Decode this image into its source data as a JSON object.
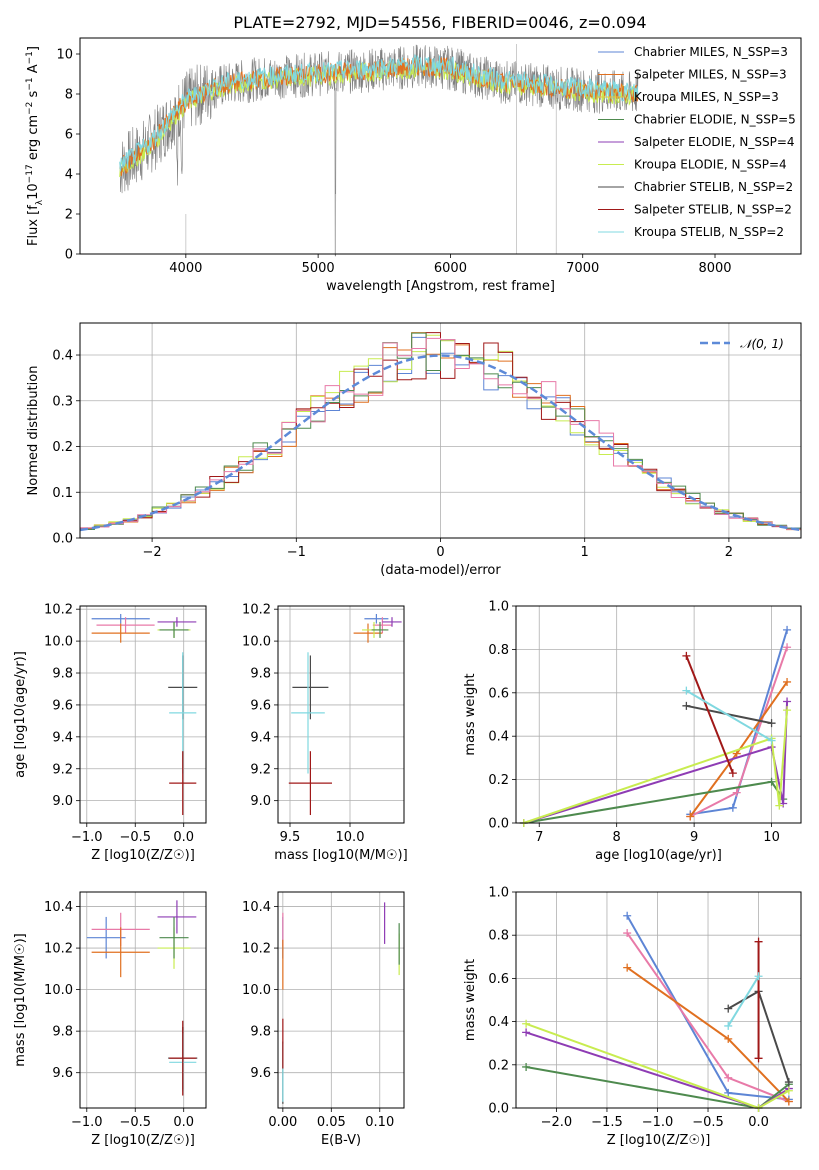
{
  "title": "PLATE=2792, MJD=54556, FIBERID=0046, z=0.094",
  "colors": {
    "Chabrier MILES": "#5d85d5",
    "Salpeter MILES": "#e07020",
    "Kroupa MILES": "#e6c440",
    "Chabrier ELODIE": "#4e8a4e",
    "Salpeter ELODIE": "#8e3cb4",
    "Kroupa ELODIE": "#c8ec50",
    "Chabrier STELIB": "#4a4a4a",
    "Salpeter STELIB": "#a01818",
    "Kroupa STELIB": "#80d8e0",
    "pink": "#e87aa8",
    "data": "#7f7f7f",
    "normal": "#5d8ad8"
  },
  "panels": {
    "spectrum": {
      "xlabel": "wavelength [Angstrom, rest frame]",
      "ylabel": "Flux [f_λ 10^-17 erg cm^-2 s^-1 A^-1]",
      "xticks": [
        "4000",
        "5000",
        "6000",
        "7000",
        "8000"
      ],
      "yticks": [
        "0",
        "2",
        "4",
        "6",
        "8",
        "10"
      ]
    },
    "hist": {
      "xlabel": "(data-model)/error",
      "ylabel": "Normed distribution",
      "xticks": [
        "−2",
        "−1",
        "0",
        "1",
        "2"
      ],
      "yticks": [
        "0.0",
        "0.1",
        "0.2",
        "0.3",
        "0.4"
      ],
      "legend": "𝒩(0, 1)"
    },
    "age_Z": {
      "xlabel": "Z [log10(Z/Z☉)]",
      "ylabel": "age [log10(age/yr)]",
      "xticks": [
        "−1.0",
        "−0.5",
        "0.0"
      ],
      "yticks": [
        "9.0",
        "9.2",
        "9.4",
        "9.6",
        "9.8",
        "10.0",
        "10.2"
      ]
    },
    "age_mass": {
      "xlabel": "mass [log10(M/M☉)]",
      "xticks": [
        "9.5",
        "10.0"
      ],
      "yticks": [
        "9.0",
        "9.2",
        "9.4",
        "9.6",
        "9.8",
        "10.0",
        "10.2"
      ]
    },
    "mw_age": {
      "xlabel": "age [log10(age/yr)]",
      "ylabel": "mass weight",
      "xticks": [
        "7",
        "8",
        "9",
        "10"
      ],
      "yticks": [
        "0.0",
        "0.2",
        "0.4",
        "0.6",
        "0.8",
        "1.0"
      ]
    },
    "mass_Z": {
      "xlabel": "Z [log10(Z/Z☉)]",
      "ylabel": "mass [log10(M/M☉)]",
      "xticks": [
        "−1.0",
        "−0.5",
        "0.0"
      ],
      "yticks": [
        "9.6",
        "9.8",
        "10.0",
        "10.2",
        "10.4"
      ]
    },
    "mass_ebv": {
      "xlabel": "E(B-V)",
      "xticks": [
        "0.00",
        "0.05",
        "0.10"
      ],
      "yticks": [
        "9.6",
        "9.8",
        "10.0",
        "10.2",
        "10.4"
      ]
    },
    "mw_Z": {
      "xlabel": "Z [log10(Z/Z☉)]",
      "ylabel": "mass weight",
      "xticks": [
        "−2.0",
        "−1.5",
        "−1.0",
        "−0.5",
        "0.0"
      ],
      "yticks": [
        "0.0",
        "0.2",
        "0.4",
        "0.6",
        "0.8",
        "1.0"
      ]
    }
  },
  "chart_data": [
    {
      "type": "line",
      "title": "PLATE=2792, MJD=54556, FIBERID=0046, z=0.094",
      "xlabel": "wavelength [Angstrom, rest frame]",
      "ylabel": "Flux [f_λ 10^-17 erg cm^-2 s^-1 A^-1]",
      "xlim": [
        3200,
        8650
      ],
      "ylim": [
        0,
        10.8
      ],
      "legend_position": "right",
      "series": [
        {
          "name": "Chabrier MILES, N_SSP=3"
        },
        {
          "name": "Salpeter MILES, N_SSP=3"
        },
        {
          "name": "Kroupa MILES, N_SSP=3"
        },
        {
          "name": "Chabrier ELODIE, N_SSP=5"
        },
        {
          "name": "Salpeter ELODIE, N_SSP=4"
        },
        {
          "name": "Kroupa ELODIE, N_SSP=4"
        },
        {
          "name": "Chabrier STELIB, N_SSP=2"
        },
        {
          "name": "Salpeter STELIB, N_SSP=2"
        },
        {
          "name": "Kroupa STELIB, N_SSP=2"
        }
      ],
      "continuum": {
        "x": [
          3500,
          3700,
          3800,
          3900,
          4000,
          4200,
          4400,
          4600,
          4800,
          5000,
          5200,
          5400,
          5600,
          5800,
          6000,
          6200,
          6400,
          6600,
          6800,
          7000,
          7200,
          7400
        ],
        "y": [
          4.3,
          5.3,
          6.0,
          6.9,
          7.6,
          8.3,
          8.6,
          8.8,
          8.9,
          9.0,
          9.1,
          9.2,
          9.3,
          9.4,
          9.3,
          8.9,
          8.6,
          8.5,
          8.3,
          8.2,
          8.1,
          8.0
        ]
      }
    },
    {
      "type": "bar",
      "xlabel": "(data-model)/error",
      "ylabel": "Normed distribution",
      "xlim": [
        -2.5,
        2.5
      ],
      "ylim": [
        0,
        0.47
      ],
      "grid": true,
      "legend_position": "top-right",
      "bin_width": 0.1,
      "reference_curve": {
        "name": "𝒩(0, 1)",
        "mean": 0,
        "sigma": 1
      }
    },
    {
      "type": "scatter",
      "xlabel": "Z [log10(Z/Z☉)]",
      "ylabel": "age [log10(age/yr)]",
      "xlim": [
        -1.07,
        0.23
      ],
      "ylim": [
        8.86,
        10.22
      ],
      "grid": true,
      "points": [
        {
          "model": "Chabrier MILES",
          "x": -0.65,
          "y": 10.14,
          "xerr": 0.3,
          "yerr": 0.03
        },
        {
          "model": "pink",
          "x": -0.6,
          "y": 10.1,
          "xerr": 0.3,
          "yerr": 0.05
        },
        {
          "model": "Salpeter MILES",
          "x": -0.65,
          "y": 10.05,
          "xerr": 0.3,
          "yerr": 0.06
        },
        {
          "model": "Salpeter ELODIE",
          "x": -0.07,
          "y": 10.12,
          "xerr": 0.2,
          "yerr": 0.03
        },
        {
          "model": "Kroupa ELODIE",
          "x": -0.1,
          "y": 10.07,
          "xerr": 0.17,
          "yerr": 0.05
        },
        {
          "model": "Chabrier ELODIE",
          "x": -0.1,
          "y": 10.07,
          "xerr": 0.15,
          "yerr": 0.05
        },
        {
          "model": "Chabrier STELIB",
          "x": -0.01,
          "y": 9.71,
          "xerr": 0.15,
          "yerr": 0.2
        },
        {
          "model": "Kroupa STELIB",
          "x": -0.01,
          "y": 9.55,
          "xerr": 0.14,
          "yerr": 0.38
        },
        {
          "model": "Salpeter STELIB",
          "x": -0.01,
          "y": 9.11,
          "xerr": 0.14,
          "yerr": 0.2
        }
      ]
    },
    {
      "type": "scatter",
      "xlabel": "mass [log10(M/M☉)]",
      "ylabel": "",
      "xlim": [
        9.4,
        10.45
      ],
      "ylim": [
        8.86,
        10.22
      ],
      "grid": true,
      "points": [
        {
          "model": "Chabrier MILES",
          "x": 10.22,
          "y": 10.14,
          "xerr": 0.1,
          "yerr": 0.03
        },
        {
          "model": "pink",
          "x": 10.27,
          "y": 10.1,
          "xerr": 0.08,
          "yerr": 0.05
        },
        {
          "model": "Salpeter MILES",
          "x": 10.15,
          "y": 10.05,
          "xerr": 0.12,
          "yerr": 0.06
        },
        {
          "model": "Salpeter ELODIE",
          "x": 10.35,
          "y": 10.12,
          "xerr": 0.08,
          "yerr": 0.03
        },
        {
          "model": "Kroupa ELODIE",
          "x": 10.2,
          "y": 10.07,
          "xerr": 0.1,
          "yerr": 0.05
        },
        {
          "model": "Chabrier ELODIE",
          "x": 10.25,
          "y": 10.07,
          "xerr": 0.07,
          "yerr": 0.05
        },
        {
          "model": "Chabrier STELIB",
          "x": 9.67,
          "y": 9.71,
          "xerr": 0.15,
          "yerr": 0.2
        },
        {
          "model": "Kroupa STELIB",
          "x": 9.65,
          "y": 9.55,
          "xerr": 0.14,
          "yerr": 0.38
        },
        {
          "model": "Salpeter STELIB",
          "x": 9.67,
          "y": 9.11,
          "xerr": 0.18,
          "yerr": 0.2
        }
      ]
    },
    {
      "type": "line",
      "xlabel": "age [log10(age/yr)]",
      "ylabel": "mass weight",
      "xlim": [
        6.7,
        10.38
      ],
      "ylim": [
        0,
        1.0
      ],
      "grid": true,
      "series": [
        {
          "model": "Chabrier MILES",
          "x": [
            8.95,
            9.5,
            10.2
          ],
          "y": [
            0.04,
            0.07,
            0.89
          ]
        },
        {
          "model": "pink",
          "x": [
            8.95,
            9.55,
            10.2
          ],
          "y": [
            0.03,
            0.14,
            0.81
          ]
        },
        {
          "model": "Salpeter MILES",
          "x": [
            8.95,
            9.55,
            10.2
          ],
          "y": [
            0.03,
            0.32,
            0.65
          ]
        },
        {
          "model": "Chabrier ELODIE",
          "x": [
            6.8,
            10.0,
            10.15
          ],
          "y": [
            0.0,
            0.19,
            0.11
          ]
        },
        {
          "model": "Salpeter ELODIE",
          "x": [
            6.8,
            10.0,
            10.15,
            10.2
          ],
          "y": [
            0.0,
            0.35,
            0.09,
            0.56
          ]
        },
        {
          "model": "Kroupa ELODIE",
          "x": [
            6.8,
            10.0,
            10.1,
            10.2
          ],
          "y": [
            0.0,
            0.39,
            0.08,
            0.52
          ]
        },
        {
          "model": "Chabrier STELIB",
          "x": [
            8.9,
            10.0
          ],
          "y": [
            0.54,
            0.46
          ]
        },
        {
          "model": "Salpeter STELIB",
          "x": [
            8.9,
            9.5
          ],
          "y": [
            0.77,
            0.23
          ]
        },
        {
          "model": "Kroupa STELIB",
          "x": [
            8.9,
            10.0
          ],
          "y": [
            0.61,
            0.38
          ]
        }
      ]
    },
    {
      "type": "scatter",
      "xlabel": "Z [log10(Z/Z☉)]",
      "ylabel": "mass [log10(M/M☉)]",
      "xlim": [
        -1.07,
        0.23
      ],
      "ylim": [
        9.43,
        10.47
      ],
      "grid": true,
      "points": [
        {
          "model": "Chabrier MILES",
          "x": -0.8,
          "y": 10.25,
          "xerr": 0.2,
          "yerr": 0.1
        },
        {
          "model": "pink",
          "x": -0.65,
          "y": 10.29,
          "xerr": 0.3,
          "yerr": 0.08
        },
        {
          "model": "Salpeter MILES",
          "x": -0.65,
          "y": 10.18,
          "xerr": 0.3,
          "yerr": 0.12
        },
        {
          "model": "Salpeter ELODIE",
          "x": -0.07,
          "y": 10.35,
          "xerr": 0.2,
          "yerr": 0.08
        },
        {
          "model": "Kroupa ELODIE",
          "x": -0.1,
          "y": 10.2,
          "xerr": 0.17,
          "yerr": 0.1
        },
        {
          "model": "Chabrier ELODIE",
          "x": -0.1,
          "y": 10.25,
          "xerr": 0.15,
          "yerr": 0.1
        },
        {
          "model": "Chabrier STELIB",
          "x": -0.01,
          "y": 9.67,
          "xerr": 0.15,
          "yerr": 0.15
        },
        {
          "model": "Kroupa STELIB",
          "x": -0.01,
          "y": 9.65,
          "xerr": 0.14,
          "yerr": 0.14
        },
        {
          "model": "Salpeter STELIB",
          "x": -0.01,
          "y": 9.67,
          "xerr": 0.14,
          "yerr": 0.18
        }
      ]
    },
    {
      "type": "scatter",
      "xlabel": "E(B-V)",
      "ylabel": "",
      "xlim": [
        -0.005,
        0.125
      ],
      "ylim": [
        9.43,
        10.47
      ],
      "grid": true,
      "points": [
        {
          "model": "Chabrier MILES",
          "x": 0.0,
          "y": 10.25,
          "xerr": 0,
          "yerr": 0.1
        },
        {
          "model": "pink",
          "x": 0.0,
          "y": 10.29,
          "xerr": 0,
          "yerr": 0.08
        },
        {
          "model": "Salpeter MILES",
          "x": 0.0,
          "y": 10.12,
          "xerr": 0,
          "yerr": 0.12
        },
        {
          "model": "Salpeter ELODIE",
          "x": 0.105,
          "y": 10.32,
          "xerr": 0,
          "yerr": 0.1
        },
        {
          "model": "Kroupa ELODIE",
          "x": 0.12,
          "y": 10.17,
          "xerr": 0,
          "yerr": 0.1
        },
        {
          "model": "Chabrier ELODIE",
          "x": 0.12,
          "y": 10.22,
          "xerr": 0,
          "yerr": 0.1
        },
        {
          "model": "Chabrier STELIB",
          "x": 0.0,
          "y": 9.6,
          "xerr": 0,
          "yerr": 0.15
        },
        {
          "model": "Kroupa STELIB",
          "x": 0.0,
          "y": 9.6,
          "xerr": 0,
          "yerr": 0.14
        },
        {
          "model": "Salpeter STELIB",
          "x": 0.0,
          "y": 9.74,
          "xerr": 0,
          "yerr": 0.12
        }
      ]
    },
    {
      "type": "line",
      "xlabel": "Z [log10(Z/Z☉)]",
      "ylabel": "mass weight",
      "xlim": [
        -2.4,
        0.42
      ],
      "ylim": [
        0,
        1.0
      ],
      "grid": true,
      "series": [
        {
          "model": "Chabrier MILES",
          "x": [
            -1.3,
            -0.3,
            0.3
          ],
          "y": [
            0.89,
            0.07,
            0.04
          ]
        },
        {
          "model": "pink",
          "x": [
            -1.3,
            -0.3,
            0.3
          ],
          "y": [
            0.81,
            0.14,
            0.03
          ]
        },
        {
          "model": "Salpeter MILES",
          "x": [
            -1.3,
            -0.3,
            0.3
          ],
          "y": [
            0.65,
            0.32,
            0.03
          ]
        },
        {
          "model": "Chabrier ELODIE",
          "x": [
            -2.3,
            0.0,
            0.3
          ],
          "y": [
            0.19,
            0.0,
            0.11
          ]
        },
        {
          "model": "Salpeter ELODIE",
          "x": [
            -2.3,
            0.0,
            0.3
          ],
          "y": [
            0.35,
            0.0,
            0.09
          ]
        },
        {
          "model": "Kroupa ELODIE",
          "x": [
            -2.3,
            0.0,
            0.3
          ],
          "y": [
            0.39,
            0.0,
            0.08
          ]
        },
        {
          "model": "Chabrier STELIB",
          "x": [
            -0.3,
            0.0,
            0.3
          ],
          "y": [
            0.46,
            0.54,
            0.12
          ]
        },
        {
          "model": "Salpeter STELIB",
          "x": [
            0.0,
            0.0
          ],
          "y": [
            0.77,
            0.23
          ]
        },
        {
          "model": "Kroupa STELIB",
          "x": [
            -0.3,
            0.0
          ],
          "y": [
            0.38,
            0.61
          ]
        }
      ]
    }
  ]
}
